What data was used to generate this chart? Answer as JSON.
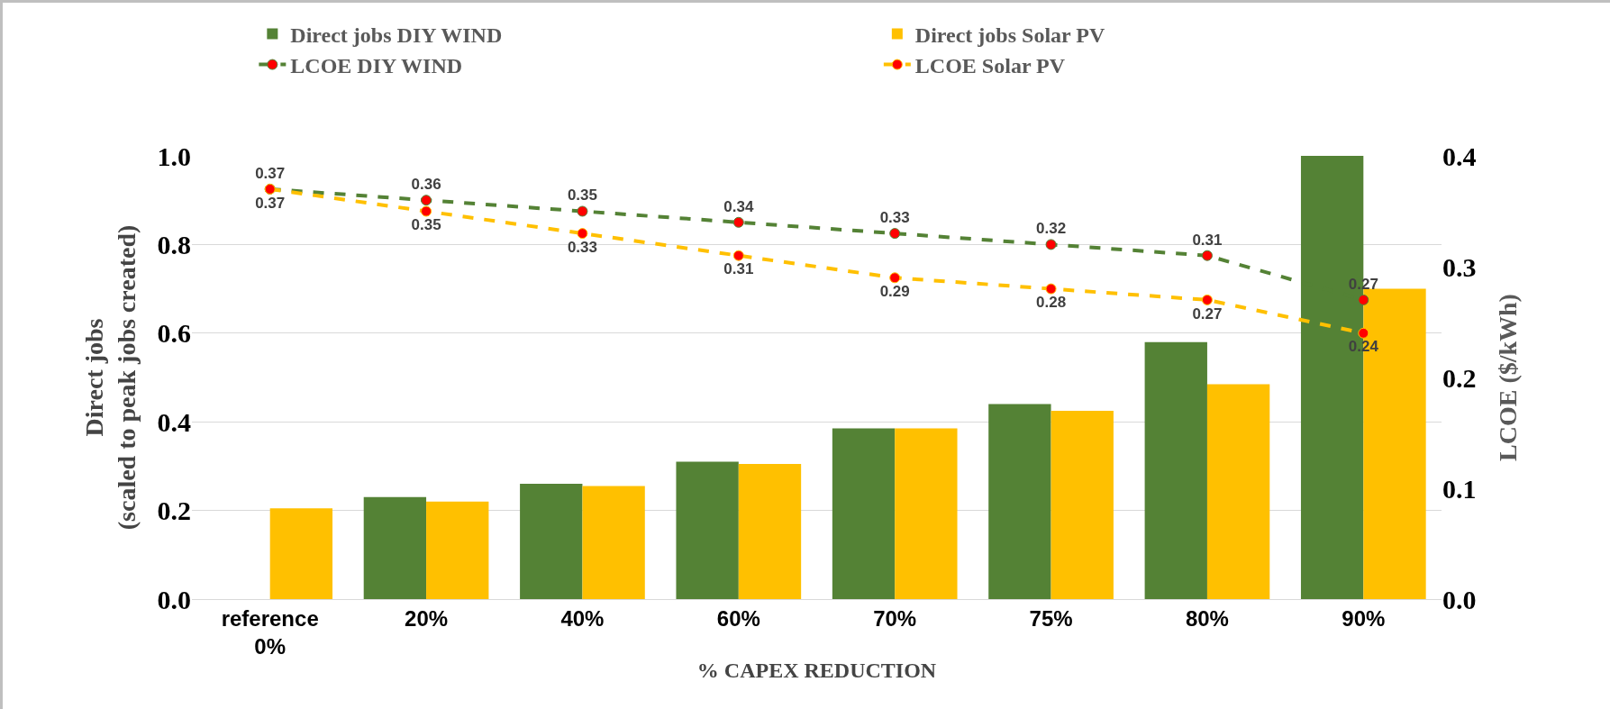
{
  "chart_data": {
    "type": "bar",
    "xlabel": "% CAPEX REDUCTION",
    "ylabel": "Direct jobs\n(scaled to peak jobs created)",
    "y2label": "LCOE ($/kWh)",
    "categories": [
      "reference\n0%",
      "20%",
      "40%",
      "60%",
      "70%",
      "75%",
      "80%",
      "90%"
    ],
    "series": [
      {
        "name": "Direct jobs DIY WIND",
        "color": "#548235",
        "values": [
          null,
          0.23,
          0.26,
          0.31,
          0.385,
          0.44,
          0.58,
          1.0
        ]
      },
      {
        "name": "Direct jobs Solar PV",
        "color": "#ffc000",
        "values": [
          0.205,
          0.22,
          0.255,
          0.305,
          0.385,
          0.425,
          0.485,
          0.7
        ]
      },
      {
        "name": "LCOE DIY WIND",
        "type": "line",
        "axis": "y2",
        "color": "#548235",
        "line_style": "dashed",
        "marker": "circle",
        "data_labels": true,
        "values": [
          0.37,
          0.36,
          0.35,
          0.34,
          0.33,
          0.32,
          0.31,
          0.27
        ]
      },
      {
        "name": "LCOE Solar PV",
        "type": "line",
        "axis": "y2",
        "color": "#ffc000",
        "line_style": "dashed",
        "marker": "circle",
        "data_labels": true,
        "values": [
          0.37,
          0.35,
          0.33,
          0.31,
          0.29,
          0.28,
          0.27,
          0.24
        ]
      }
    ],
    "ylim": [
      0,
      1.0
    ],
    "yticks": [
      {
        "value": 0,
        "label": "0.0"
      },
      {
        "value": 0.2,
        "label": "0.2"
      },
      {
        "value": 0.4,
        "label": "0.4"
      },
      {
        "value": 0.6,
        "label": "0.6"
      },
      {
        "value": 0.8,
        "label": "0.8"
      },
      {
        "value": 1.0,
        "label": "1.0"
      }
    ],
    "y2lim": [
      0,
      0.4
    ],
    "y2ticks": [
      {
        "value": 0,
        "label": "0.0"
      },
      {
        "value": 0.1,
        "label": "0.1"
      },
      {
        "value": 0.2,
        "label": "0.2"
      },
      {
        "value": 0.3,
        "label": "0.3"
      },
      {
        "value": 0.4,
        "label": "0.4"
      }
    ],
    "grid": "y",
    "legend": "top"
  }
}
